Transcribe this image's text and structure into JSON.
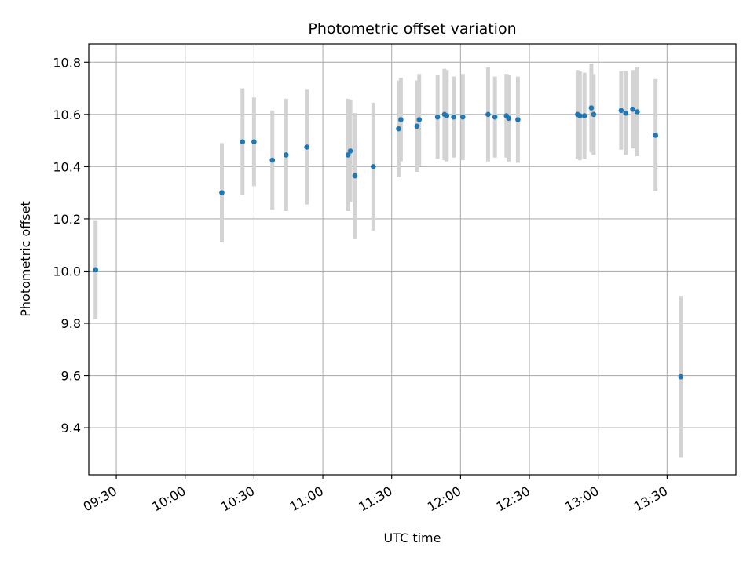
{
  "chart_data": {
    "type": "scatter",
    "title": "Photometric offset variation",
    "xlabel": "UTC time",
    "ylabel": "Photometric offset",
    "x_ticks": [
      "09:30",
      "10:00",
      "10:30",
      "11:00",
      "11:30",
      "12:00",
      "12:30",
      "13:00",
      "13:30"
    ],
    "x_range": [
      "09:18",
      "14:00"
    ],
    "y_ticks": [
      "9.4",
      "9.6",
      "9.8",
      "10.0",
      "10.2",
      "10.4",
      "10.6",
      "10.8"
    ],
    "ylim": [
      9.22,
      10.87
    ],
    "grid": true,
    "colors": {
      "point": "#1f77b4",
      "errorbar": "#d3d3d3",
      "grid": "#b0b0b0"
    },
    "points": [
      {
        "x": "09:21",
        "y": 10.005,
        "err": 0.19
      },
      {
        "x": "10:16",
        "y": 10.3,
        "err": 0.19
      },
      {
        "x": "10:25",
        "y": 10.495,
        "err": 0.205
      },
      {
        "x": "10:30",
        "y": 10.495,
        "err": 0.17
      },
      {
        "x": "10:38",
        "y": 10.425,
        "err": 0.19
      },
      {
        "x": "10:44",
        "y": 10.445,
        "err": 0.215
      },
      {
        "x": "10:53",
        "y": 10.475,
        "err": 0.22
      },
      {
        "x": "11:11",
        "y": 10.445,
        "err": 0.215
      },
      {
        "x": "11:12",
        "y": 10.46,
        "err": 0.195
      },
      {
        "x": "11:14",
        "y": 10.365,
        "err": 0.24
      },
      {
        "x": "11:22",
        "y": 10.4,
        "err": 0.245
      },
      {
        "x": "11:33",
        "y": 10.545,
        "err": 0.185
      },
      {
        "x": "11:34",
        "y": 10.58,
        "err": 0.16
      },
      {
        "x": "11:41",
        "y": 10.555,
        "err": 0.175
      },
      {
        "x": "11:42",
        "y": 10.58,
        "err": 0.175
      },
      {
        "x": "11:50",
        "y": 10.59,
        "err": 0.16
      },
      {
        "x": "11:53",
        "y": 10.6,
        "err": 0.175
      },
      {
        "x": "11:54",
        "y": 10.595,
        "err": 0.175
      },
      {
        "x": "11:57",
        "y": 10.59,
        "err": 0.155
      },
      {
        "x": "12:01",
        "y": 10.59,
        "err": 0.165
      },
      {
        "x": "12:12",
        "y": 10.6,
        "err": 0.18
      },
      {
        "x": "12:15",
        "y": 10.59,
        "err": 0.155
      },
      {
        "x": "12:20",
        "y": 10.595,
        "err": 0.16
      },
      {
        "x": "12:21",
        "y": 10.585,
        "err": 0.165
      },
      {
        "x": "12:25",
        "y": 10.58,
        "err": 0.165
      },
      {
        "x": "12:51",
        "y": 10.6,
        "err": 0.17
      },
      {
        "x": "12:52",
        "y": 10.595,
        "err": 0.17
      },
      {
        "x": "12:54",
        "y": 10.595,
        "err": 0.165
      },
      {
        "x": "12:57",
        "y": 10.625,
        "err": 0.17
      },
      {
        "x": "12:58",
        "y": 10.6,
        "err": 0.155
      },
      {
        "x": "13:10",
        "y": 10.615,
        "err": 0.15
      },
      {
        "x": "13:12",
        "y": 10.605,
        "err": 0.16
      },
      {
        "x": "13:15",
        "y": 10.62,
        "err": 0.15
      },
      {
        "x": "13:17",
        "y": 10.61,
        "err": 0.17
      },
      {
        "x": "13:25",
        "y": 10.52,
        "err": 0.215
      },
      {
        "x": "13:36",
        "y": 9.595,
        "err": 0.31
      }
    ]
  }
}
